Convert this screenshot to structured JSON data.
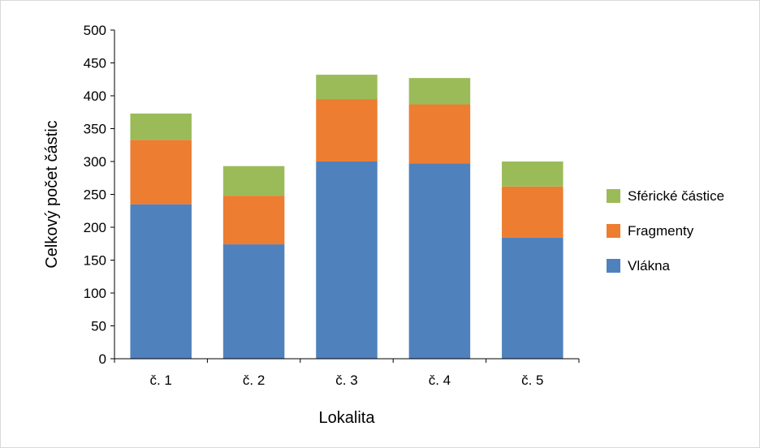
{
  "chart_data": {
    "type": "bar",
    "stacked": true,
    "title": "",
    "xlabel": "Lokalita",
    "ylabel": "Celkový počet částic",
    "ylim": [
      0,
      500
    ],
    "yticks": [
      "0",
      "50",
      "100",
      "150",
      "200",
      "250",
      "300",
      "350",
      "400",
      "450",
      "500"
    ],
    "categories": [
      "č. 1",
      "č. 2",
      "č. 3",
      "č. 4",
      "č. 5"
    ],
    "series": [
      {
        "name": "Vlákna",
        "color": "#4f81bd",
        "values": [
          235,
          174,
          300,
          297,
          184
        ]
      },
      {
        "name": "Fragmenty",
        "color": "#ed7d31",
        "values": [
          98,
          74,
          95,
          90,
          78
        ]
      },
      {
        "name": "Sférické částice",
        "color": "#9bbb59",
        "values": [
          40,
          45,
          37,
          40,
          38
        ]
      }
    ],
    "legend": {
      "placement": "right",
      "order": [
        "Sférické částice",
        "Fragmenty",
        "Vlákna"
      ]
    },
    "grid": false
  }
}
